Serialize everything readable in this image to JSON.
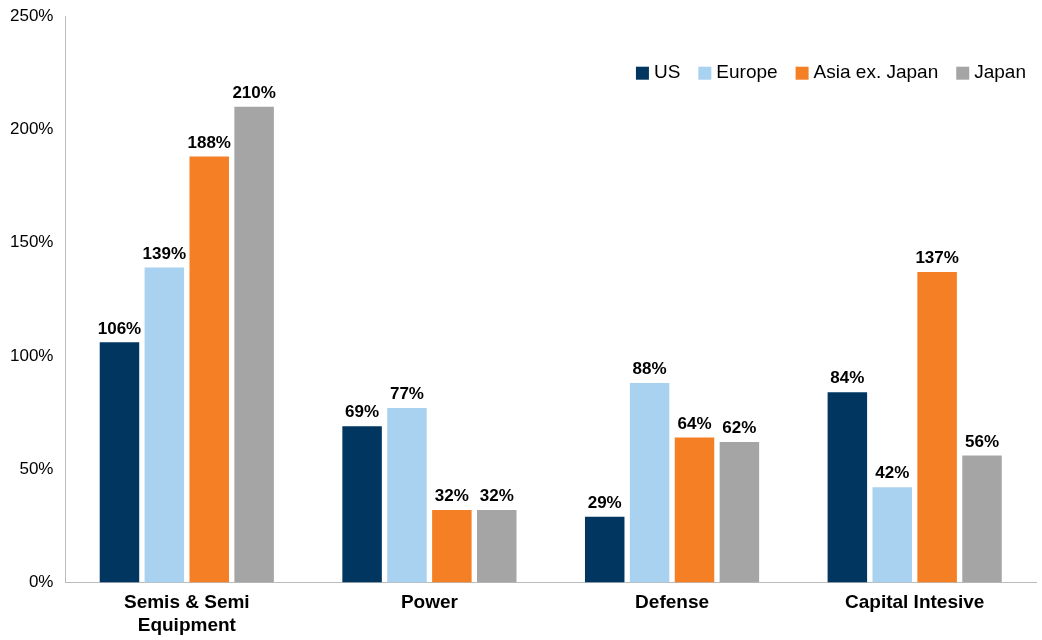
{
  "chart_data": {
    "type": "bar",
    "categories": [
      "Semis & Semi Equipment",
      "Power",
      "Defense",
      "Capital Intesive"
    ],
    "series": [
      {
        "name": "US",
        "color": "#003660",
        "values": [
          106,
          69,
          29,
          84
        ],
        "value_labels": [
          "106%",
          "69%",
          "29%",
          "84%"
        ]
      },
      {
        "name": "Europe",
        "color": "#a9d2f0",
        "values": [
          139,
          77,
          88,
          42
        ],
        "value_labels": [
          "139%",
          "77%",
          "88%",
          "42%"
        ]
      },
      {
        "name": "Asia ex. Japan",
        "color": "#f47f24",
        "values": [
          188,
          32,
          64,
          137
        ],
        "value_labels": [
          "188%",
          "32%",
          "64%",
          "137%"
        ]
      },
      {
        "name": "Japan",
        "color": "#a5a5a5",
        "values": [
          210,
          32,
          62,
          56
        ],
        "value_labels": [
          "210%",
          "32%",
          "62%",
          "56%"
        ]
      }
    ],
    "ylim": [
      0,
      250
    ],
    "yticks": [
      {
        "value": 0,
        "label": "0%"
      },
      {
        "value": 50,
        "label": "50%"
      },
      {
        "value": 100,
        "label": "100%"
      },
      {
        "value": 150,
        "label": "150%"
      },
      {
        "value": 200,
        "label": "200%"
      },
      {
        "value": 250,
        "label": "250%"
      }
    ],
    "legend": "top right",
    "grid": false
  }
}
